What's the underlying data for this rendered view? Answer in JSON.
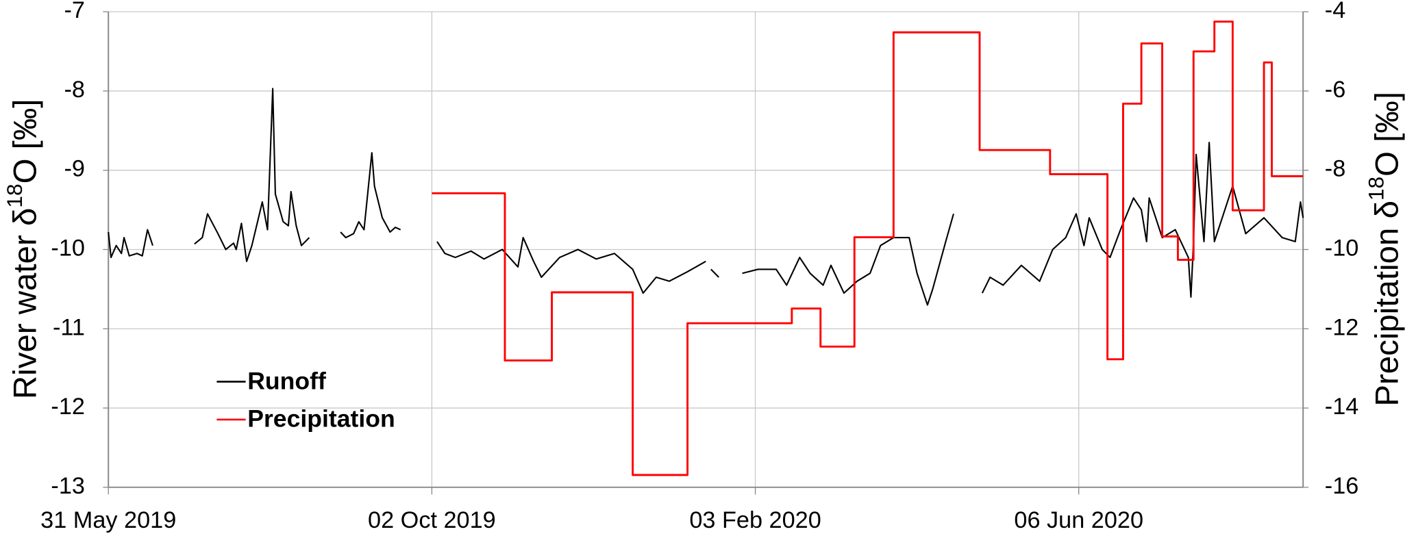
{
  "chart_data": {
    "type": "line",
    "ylabel": [
      "River water δ",
      "18",
      "O [‰]"
    ],
    "y2label": [
      "Precipitation δ",
      "18",
      "O [‰]"
    ],
    "xlim": [
      "2019-05-31",
      "2020-08-31"
    ],
    "xticks": [
      {
        "value": "2019-05-31",
        "label": "31 May 2019"
      },
      {
        "value": "2019-10-02",
        "label": "02 Oct 2019"
      },
      {
        "value": "2020-02-03",
        "label": "03 Feb 2020"
      },
      {
        "value": "2020-06-06",
        "label": "06 Jun 2020"
      }
    ],
    "ylim": [
      -13,
      -7
    ],
    "yticks": [
      -13,
      -12,
      -11,
      -10,
      -9,
      -8,
      -7
    ],
    "y2lim": [
      -16,
      -4
    ],
    "y2ticks": [
      -16,
      -14,
      -12,
      -10,
      -8,
      -6,
      -4
    ],
    "grid": true,
    "legend": "lower left",
    "series": [
      {
        "name": "Runoff",
        "color": "#000000",
        "x": [
          "2019-05-31",
          "2019-06-01",
          "2019-06-03",
          "2019-06-05",
          "2019-06-06",
          "2019-06-08",
          "2019-06-11",
          "2019-06-13",
          "2019-06-15",
          "2019-06-17",
          "2019-06-25",
          "2019-07-03",
          "2019-07-06",
          "2019-07-08",
          "2019-07-12",
          "2019-07-15",
          "2019-07-18",
          "2019-07-19",
          "2019-07-21",
          "2019-07-23",
          "2019-07-25",
          "2019-07-29",
          "2019-07-31",
          "2019-08-02",
          "2019-08-03",
          "2019-08-06",
          "2019-08-08",
          "2019-08-09",
          "2019-08-11",
          "2019-08-13",
          "2019-08-16",
          "2019-08-22",
          "2019-08-28",
          "2019-08-30",
          "2019-09-02",
          "2019-09-04",
          "2019-09-06",
          "2019-09-09",
          "2019-09-10",
          "2019-09-13",
          "2019-09-16",
          "2019-09-18",
          "2019-09-20",
          "2019-09-27",
          "2019-10-04",
          "2019-10-07",
          "2019-10-11",
          "2019-10-17",
          "2019-10-22",
          "2019-10-29",
          "2019-11-04",
          "2019-11-06",
          "2019-11-10",
          "2019-11-13",
          "2019-11-20",
          "2019-11-27",
          "2019-12-04",
          "2019-12-11",
          "2019-12-18",
          "2019-12-22",
          "2019-12-27",
          "2020-01-01",
          "2020-01-08",
          "2020-01-15",
          "2020-01-16",
          "2020-01-17",
          "2020-01-20",
          "2020-01-25",
          "2020-01-29",
          "2020-02-04",
          "2020-02-11",
          "2020-02-15",
          "2020-02-20",
          "2020-02-24",
          "2020-02-29",
          "2020-03-03",
          "2020-03-08",
          "2020-03-13",
          "2020-03-18",
          "2020-03-22",
          "2020-03-27",
          "2020-04-02",
          "2020-04-05",
          "2020-04-09",
          "2020-04-11",
          "2020-04-16",
          "2020-04-19",
          "2020-04-25",
          "2020-04-30",
          "2020-05-03",
          "2020-05-08",
          "2020-05-15",
          "2020-05-22",
          "2020-05-27",
          "2020-06-01",
          "2020-06-05",
          "2020-06-08",
          "2020-06-10",
          "2020-06-15",
          "2020-06-18",
          "2020-06-22",
          "2020-06-27",
          "2020-06-30",
          "2020-07-02",
          "2020-07-03",
          "2020-07-08",
          "2020-07-13",
          "2020-07-18",
          "2020-07-19",
          "2020-07-20",
          "2020-07-21",
          "2020-07-24",
          "2020-07-26",
          "2020-07-28",
          "2020-08-04",
          "2020-08-09",
          "2020-08-16",
          "2020-08-23",
          "2020-08-28",
          "2020-08-30",
          "2020-08-31"
        ],
        "values": [
          -9.78,
          -10.1,
          -9.95,
          -10.05,
          -9.85,
          -10.08,
          -10.05,
          -10.08,
          -9.75,
          -9.95,
          null,
          -9.93,
          -9.85,
          -9.55,
          -9.8,
          -10.0,
          -9.92,
          -10.0,
          -9.67,
          -10.15,
          -9.95,
          -9.4,
          -9.75,
          -7.97,
          -9.3,
          -9.65,
          -9.7,
          -9.27,
          -9.7,
          -9.95,
          -9.85,
          null,
          -9.78,
          -9.85,
          -9.8,
          -9.65,
          -9.75,
          -8.78,
          -9.2,
          -9.6,
          -9.78,
          -9.72,
          -9.75,
          null,
          -9.9,
          -10.05,
          -10.1,
          -10.02,
          -10.12,
          -10.0,
          -10.22,
          -9.85,
          -10.15,
          -10.35,
          -10.1,
          -10.0,
          -10.12,
          -10.05,
          -10.25,
          -10.55,
          -10.35,
          -10.4,
          -10.28,
          -10.15,
          null,
          -10.25,
          -10.35,
          null,
          -10.3,
          -10.25,
          -10.25,
          -10.45,
          -10.1,
          -10.3,
          -10.45,
          -10.2,
          -10.55,
          -10.4,
          -10.3,
          -9.95,
          -9.85,
          -9.85,
          -10.3,
          -10.7,
          -10.5,
          -9.9,
          -9.55,
          null,
          -10.55,
          -10.35,
          -10.45,
          -10.2,
          -10.4,
          -10.0,
          -9.85,
          -9.55,
          -9.95,
          -9.6,
          -10.0,
          -10.1,
          -9.75,
          -9.35,
          -9.5,
          -9.9,
          -9.35,
          -9.85,
          -9.75,
          -10.1,
          -10.6,
          -9.9,
          -8.8,
          -9.9,
          -8.65,
          -9.9,
          -9.2,
          -9.8,
          -9.6,
          -9.85,
          -9.9,
          -9.4,
          -9.6
        ]
      },
      {
        "name": "Precipitation",
        "color": "#ff0000",
        "axis": "y2",
        "step": "post",
        "x": [
          "2019-10-02",
          "2019-10-30",
          "2019-11-17",
          "2019-12-18",
          "2020-01-08",
          "2020-02-17",
          "2020-02-28",
          "2020-03-12",
          "2020-03-27",
          "2020-04-29",
          "2020-05-26",
          "2020-06-17",
          "2020-06-23",
          "2020-06-30",
          "2020-07-08",
          "2020-07-14",
          "2020-07-20",
          "2020-07-28",
          "2020-08-04",
          "2020-08-16",
          "2020-08-19",
          "2020-08-31"
        ],
        "values": [
          -8.58,
          -12.8,
          -11.08,
          -15.69,
          -11.86,
          -11.49,
          -12.45,
          -9.69,
          -4.52,
          -7.49,
          -8.1,
          -12.77,
          -6.32,
          -4.8,
          -9.67,
          -10.26,
          -5.0,
          -4.25,
          -9.01,
          -5.28,
          -8.15,
          -8.15
        ]
      }
    ]
  }
}
